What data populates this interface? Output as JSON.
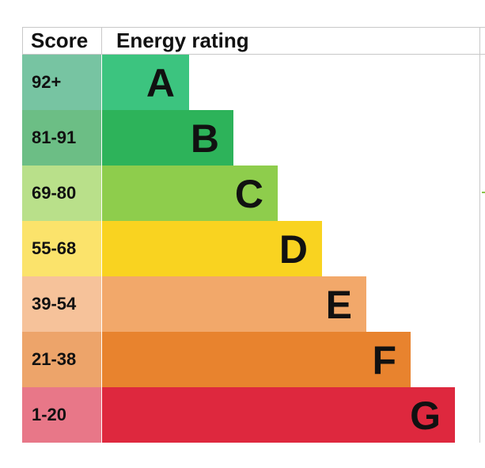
{
  "chart_data": {
    "type": "bar",
    "headers": {
      "score": "Score",
      "rating": "Energy rating"
    },
    "categories": [
      "A",
      "B",
      "C",
      "D",
      "E",
      "F",
      "G"
    ],
    "score_ranges": [
      "92+",
      "81-91",
      "69-80",
      "55-68",
      "39-54",
      "21-38",
      "1-20"
    ],
    "values": [
      1,
      2,
      3,
      4,
      5,
      6,
      7
    ],
    "colors": [
      "#3cc47f",
      "#2db35a",
      "#8ecd4c",
      "#f9d320",
      "#f2a86a",
      "#e8832e",
      "#de283e"
    ],
    "score_colors": [
      "#77c4a2",
      "#6cbe85",
      "#b9e08a",
      "#fbe36b",
      "#f6c29a",
      "#eda46a",
      "#e87788"
    ]
  }
}
